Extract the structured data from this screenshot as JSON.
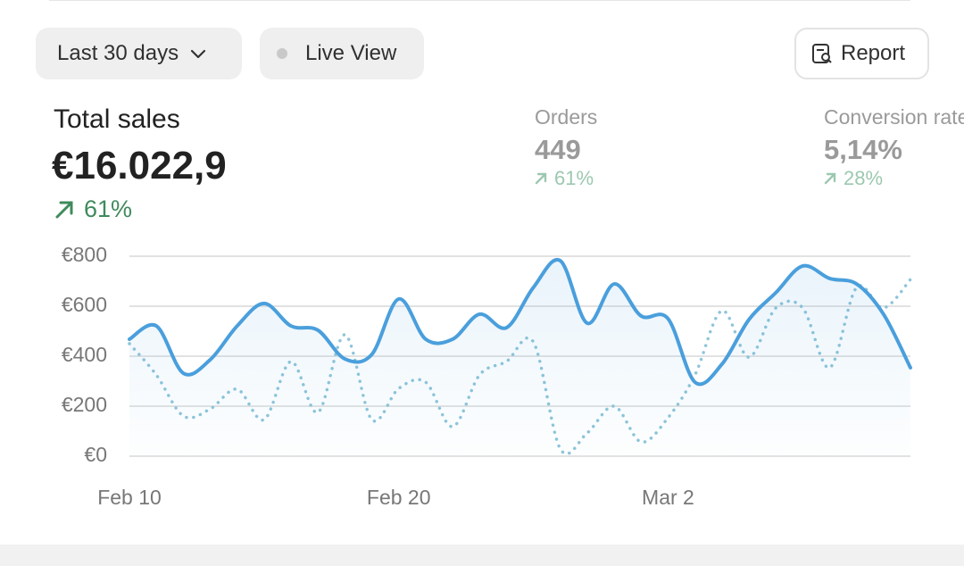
{
  "toolbar": {
    "date_range": "Last 30 days",
    "live_view": "Live View",
    "report": "Report"
  },
  "metrics": [
    {
      "label": "Total sales",
      "value": "€16.022,9",
      "change": "61%"
    },
    {
      "label": "Orders",
      "value": "449",
      "change": "61%"
    },
    {
      "label": "Conversion rate",
      "value": "5,14%",
      "change": "28%"
    }
  ],
  "chart_data": {
    "type": "line",
    "categories": [
      "Feb 10",
      null,
      null,
      null,
      null,
      null,
      null,
      null,
      null,
      null,
      "Feb 20",
      null,
      null,
      null,
      null,
      null,
      null,
      null,
      null,
      null,
      "Mar 2",
      null,
      null,
      null,
      null,
      null,
      null,
      null,
      null,
      null
    ],
    "series": [
      {
        "color": "#4a9fdc",
        "style": "solid",
        "values": [
          468,
          521,
          332,
          386,
          521,
          611,
          521,
          504,
          389,
          407,
          629,
          468,
          468,
          568,
          514,
          675,
          782,
          532,
          689,
          561,
          550,
          296,
          368,
          546,
          654,
          761,
          711,
          689,
          568,
          354
        ]
      },
      {
        "color": "#8ec5d9",
        "style": "dotted",
        "values": [
          450,
          325,
          161,
          189,
          268,
          146,
          379,
          175,
          486,
          146,
          271,
          296,
          118,
          325,
          379,
          457,
          29,
          93,
          200,
          57,
          154,
          325,
          582,
          396,
          593,
          593,
          354,
          675,
          593,
          707
        ]
      }
    ],
    "ylim": [
      0,
      800
    ],
    "yticks": [
      {
        "value": 0,
        "label": "€0"
      },
      {
        "value": 200,
        "label": "€200"
      },
      {
        "value": 400,
        "label": "€400"
      },
      {
        "value": 600,
        "label": "€600"
      },
      {
        "value": 800,
        "label": "€800"
      }
    ],
    "grid": true
  }
}
